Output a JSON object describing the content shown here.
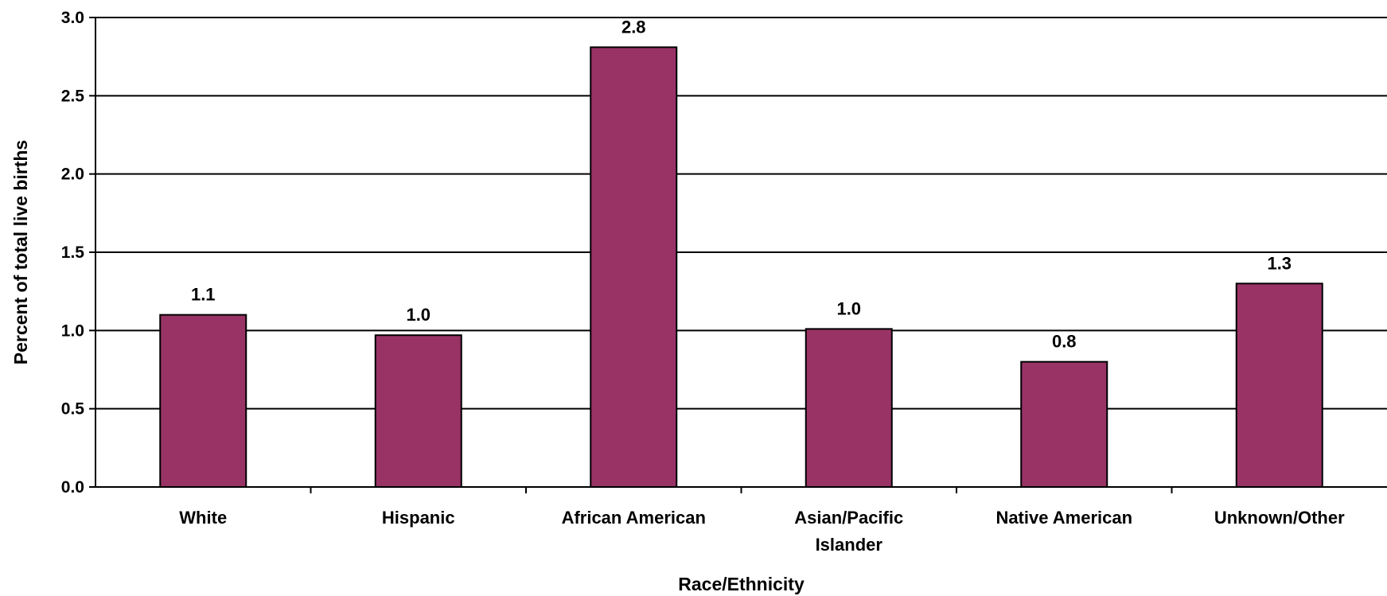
{
  "chart_data": {
    "type": "bar",
    "title": "",
    "xlabel": "Race/Ethnicity",
    "ylabel": "Percent of total live births",
    "ylim": [
      0,
      3.0
    ],
    "yticks": [
      "0.0",
      "0.5",
      "1.0",
      "1.5",
      "2.0",
      "2.5",
      "3.0"
    ],
    "categories": [
      [
        "White"
      ],
      [
        "Hispanic"
      ],
      [
        "African American"
      ],
      [
        "Asian/Pacific",
        "Islander"
      ],
      [
        "Native American"
      ],
      [
        "Unknown/Other"
      ]
    ],
    "values": [
      1.1,
      0.97,
      2.81,
      1.01,
      0.8,
      1.3
    ],
    "data_labels": [
      "1.1",
      "1.0",
      "2.8",
      "1.0",
      "0.8",
      "1.3"
    ],
    "grid": true,
    "legend": "none",
    "bar_color": "#993366"
  }
}
